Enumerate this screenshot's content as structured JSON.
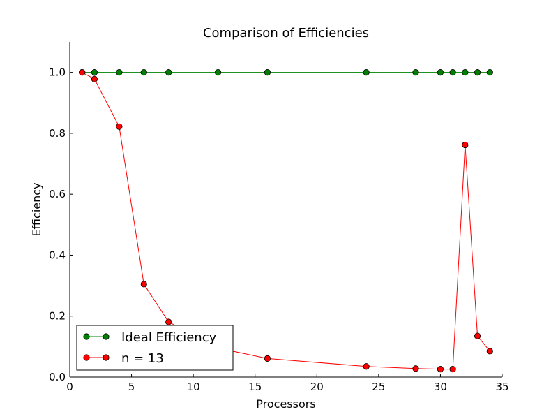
{
  "chart_data": {
    "type": "line",
    "title": "Comparison of Efficiencies",
    "xlabel": "Processors",
    "ylabel": "Efficiency",
    "xlim": [
      0,
      35
    ],
    "ylim": [
      0,
      1.1
    ],
    "xticks": [
      0,
      5,
      10,
      15,
      20,
      25,
      30,
      35
    ],
    "xtick_labels": [
      "0",
      "5",
      "10",
      "15",
      "20",
      "25",
      "30",
      "35"
    ],
    "yticks": [
      0.0,
      0.2,
      0.4,
      0.6,
      0.8,
      1.0
    ],
    "ytick_labels": [
      "0.0",
      "0.2",
      "0.4",
      "0.6",
      "0.8",
      "1.0"
    ],
    "grid": false,
    "legend_position": "lower-left",
    "series": [
      {
        "name": "Ideal Efficiency",
        "color": "#008000",
        "marker": "circle",
        "x": [
          1,
          2,
          4,
          6,
          8,
          12,
          16,
          24,
          28,
          30,
          31,
          32,
          33,
          34
        ],
        "y": [
          1.0,
          1.0,
          1.0,
          1.0,
          1.0,
          1.0,
          1.0,
          1.0,
          1.0,
          1.0,
          1.0,
          1.0,
          1.0,
          1.0
        ]
      },
      {
        "name": "n = 13",
        "color": "#ff0000",
        "marker": "circle",
        "x": [
          1,
          2,
          4,
          6,
          8,
          12,
          16,
          24,
          28,
          30,
          31,
          32,
          33,
          34
        ],
        "y": [
          1.0,
          0.978,
          0.822,
          0.305,
          0.181,
          0.095,
          0.061,
          0.035,
          0.028,
          0.026,
          0.026,
          0.762,
          0.135,
          0.085
        ]
      }
    ]
  }
}
